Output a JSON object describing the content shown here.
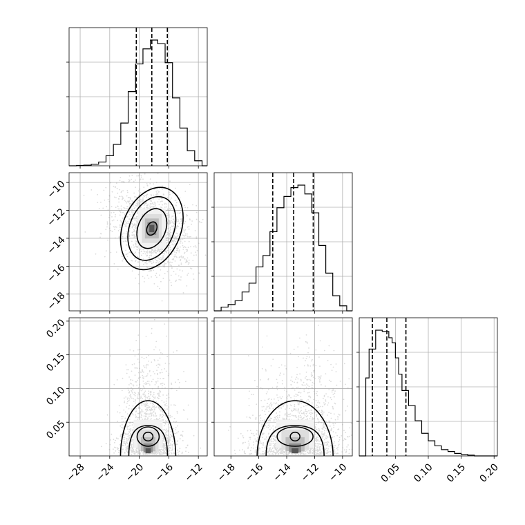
{
  "chart_data": {
    "type": "corner",
    "grid": true,
    "parameters": 3,
    "quantile_lines_style": "dashed",
    "colors": {
      "line": "#000000",
      "scatter": "#9a9a9a",
      "grid": "#b0b0b0"
    },
    "panels": [
      {
        "id": "hist-0",
        "type": "histogram",
        "xlim": [
          -29.5,
          -10.8
        ],
        "quantiles": [
          -20.4,
          -18.3,
          -16.2
        ],
        "bin_edges": [
          -29.5,
          -28.5,
          -27.5,
          -26.5,
          -25.5,
          -24.5,
          -23.5,
          -22.5,
          -21.5,
          -20.5,
          -19.5,
          -18.5,
          -17.5,
          -16.5,
          -15.5,
          -14.5,
          -13.5,
          -12.5,
          -11.5,
          -10.8
        ],
        "counts": [
          0.0,
          0.003,
          0.005,
          0.012,
          0.03,
          0.08,
          0.17,
          0.34,
          0.59,
          0.81,
          0.93,
          1.0,
          0.97,
          0.82,
          0.54,
          0.3,
          0.12,
          0.04,
          0.0
        ]
      },
      {
        "id": "scatter-1-0",
        "type": "hist2d",
        "x_param": 0,
        "y_param": 1,
        "xlim": [
          -29.5,
          -10.8
        ],
        "ylim": [
          -19.2,
          -9.3
        ],
        "center": [
          -18.3,
          -13.3
        ],
        "peak": [
          -18.9,
          -13.4
        ]
      },
      {
        "id": "hist-1",
        "type": "histogram",
        "xlim": [
          -19.2,
          -9.3
        ],
        "quantiles": [
          -15.0,
          -13.5,
          -12.1
        ],
        "bin_edges": [
          -19.2,
          -18.7,
          -18.2,
          -17.7,
          -17.2,
          -16.7,
          -16.2,
          -15.7,
          -15.2,
          -14.7,
          -14.2,
          -13.7,
          -13.2,
          -12.7,
          -12.2,
          -11.7,
          -11.2,
          -10.7,
          -10.2,
          -9.7,
          -9.3
        ],
        "counts": [
          0.0,
          0.03,
          0.05,
          0.08,
          0.15,
          0.22,
          0.35,
          0.44,
          0.63,
          0.82,
          0.91,
          0.98,
          1.0,
          0.93,
          0.78,
          0.52,
          0.3,
          0.12,
          0.04,
          0.0
        ]
      },
      {
        "id": "scatter-2-0",
        "type": "hist2d",
        "x_param": 0,
        "y_param": 2,
        "xlim": [
          -29.5,
          -10.8
        ],
        "ylim": [
          0.0,
          0.205
        ],
        "center": [
          -18.8,
          0.035
        ],
        "peak": [
          -18.9,
          0.03
        ]
      },
      {
        "id": "scatter-2-1",
        "type": "hist2d",
        "x_param": 1,
        "y_param": 2,
        "xlim": [
          -19.2,
          -9.3
        ],
        "ylim": [
          0.0,
          0.205
        ],
        "center": [
          -13.4,
          0.035
        ],
        "peak": [
          -13.6,
          0.028
        ]
      },
      {
        "id": "hist-2",
        "type": "histogram",
        "xlim": [
          -0.005,
          0.205
        ],
        "quantiles": [
          0.015,
          0.037,
          0.066
        ],
        "bin_edges": [
          -0.005,
          0.005,
          0.01,
          0.02,
          0.03,
          0.04,
          0.045,
          0.05,
          0.055,
          0.06,
          0.07,
          0.08,
          0.09,
          0.1,
          0.11,
          0.12,
          0.13,
          0.14,
          0.15,
          0.16,
          0.17,
          0.205
        ],
        "counts": [
          0.0,
          0.62,
          0.85,
          1.0,
          0.99,
          0.94,
          0.9,
          0.78,
          0.65,
          0.52,
          0.4,
          0.28,
          0.18,
          0.12,
          0.08,
          0.05,
          0.035,
          0.02,
          0.012,
          0.006,
          0.0
        ]
      }
    ],
    "axes": {
      "row1_y_ticks": [
        "−10",
        "−12",
        "−14",
        "−16",
        "−18"
      ],
      "row1_y_values": [
        -10,
        -12,
        -14,
        -16,
        -18
      ],
      "row2_y_ticks": [
        "0.20",
        "0.15",
        "0.10",
        "0.05"
      ],
      "row2_y_values": [
        0.2,
        0.15,
        0.1,
        0.05
      ],
      "col0_x_ticks": [
        "−28",
        "−24",
        "−20",
        "−16",
        "−12"
      ],
      "col0_x_values": [
        -28,
        -24,
        -20,
        -16,
        -12
      ],
      "col1_x_ticks": [
        "−18",
        "−16",
        "−14",
        "−12",
        "−10"
      ],
      "col1_x_values": [
        -18,
        -16,
        -14,
        -12,
        -10
      ],
      "col2_x_ticks": [
        "0.05",
        "0.10",
        "0.15",
        "0.20"
      ],
      "col2_x_values": [
        0.05,
        0.1,
        0.15,
        0.2
      ]
    }
  }
}
